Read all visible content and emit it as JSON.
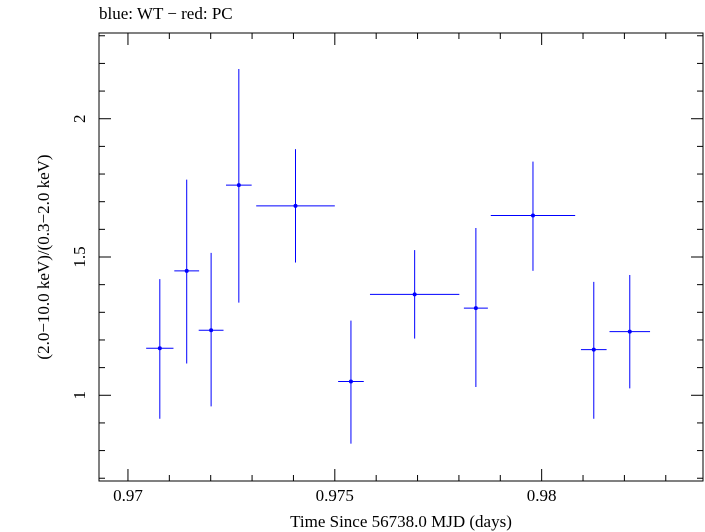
{
  "chart_data": {
    "type": "scatter",
    "title": "blue: WT − red: PC",
    "xlabel": "Time Since 56738.0 MJD (days)",
    "ylabel": "(2.0−10.0 keV)/(0.3−2.0 keV)",
    "xlim": [
      0.9693,
      0.9839
    ],
    "ylim": [
      0.69,
      2.31
    ],
    "x_ticks": [
      0.97,
      0.975,
      0.98
    ],
    "x_tick_labels": [
      "0.97",
      "0.975",
      "0.98"
    ],
    "y_ticks": [
      1,
      1.5,
      2
    ],
    "y_tick_labels": [
      "1",
      "1.5",
      "2"
    ],
    "grid": false,
    "series_color": "#0000ff",
    "points": [
      {
        "x": 0.97077,
        "xerr": 0.00033,
        "y": 1.17,
        "ylo": 0.915,
        "yhi": 1.42
      },
      {
        "x": 0.97142,
        "xerr": 0.0003,
        "y": 1.45,
        "ylo": 1.115,
        "yhi": 1.78
      },
      {
        "x": 0.97201,
        "xerr": 0.0003,
        "y": 1.235,
        "ylo": 0.96,
        "yhi": 1.515
      },
      {
        "x": 0.97268,
        "xerr": 0.00031,
        "y": 1.76,
        "ylo": 1.335,
        "yhi": 2.18
      },
      {
        "x": 0.97405,
        "xerr": 0.00095,
        "y": 1.685,
        "ylo": 1.48,
        "yhi": 1.89
      },
      {
        "x": 0.97539,
        "xerr": 0.00031,
        "y": 1.05,
        "ylo": 0.825,
        "yhi": 1.27
      },
      {
        "x": 0.97693,
        "xerr": 0.00108,
        "y": 1.365,
        "ylo": 1.205,
        "yhi": 1.525
      },
      {
        "x": 0.97841,
        "xerr": 0.00029,
        "y": 1.315,
        "ylo": 1.03,
        "yhi": 1.605
      },
      {
        "x": 0.97979,
        "xerr": 0.00102,
        "y": 1.65,
        "ylo": 1.45,
        "yhi": 1.845
      },
      {
        "x": 0.98126,
        "xerr": 0.00031,
        "y": 1.165,
        "ylo": 0.915,
        "yhi": 1.41
      },
      {
        "x": 0.98213,
        "xerr": 0.00049,
        "y": 1.23,
        "ylo": 1.025,
        "yhi": 1.435
      }
    ]
  }
}
